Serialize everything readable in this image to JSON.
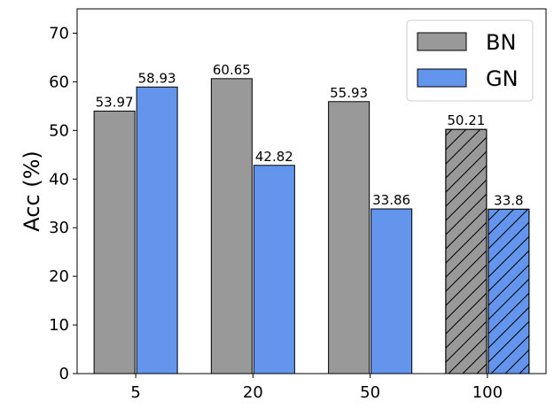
{
  "chart_data": {
    "type": "bar",
    "categories": [
      "5",
      "20",
      "50",
      "100"
    ],
    "series": [
      {
        "name": "BN",
        "values": [
          53.97,
          60.65,
          55.93,
          50.21
        ],
        "color": "#999999"
      },
      {
        "name": "GN",
        "values": [
          58.93,
          42.82,
          33.86,
          33.8
        ],
        "color": "#6495ED"
      }
    ],
    "value_labels": [
      [
        "53.97",
        "60.65",
        "55.93",
        "50.21"
      ],
      [
        "58.93",
        "42.82",
        "33.86",
        "33.8"
      ]
    ],
    "hatched_categories": [
      "100"
    ],
    "xlabel": "",
    "ylabel": "Acc (%)",
    "ylim": [
      0,
      75
    ],
    "yticks": [
      0,
      10,
      20,
      30,
      40,
      50,
      60,
      70
    ],
    "legend_position": "top-right",
    "grid": false
  }
}
